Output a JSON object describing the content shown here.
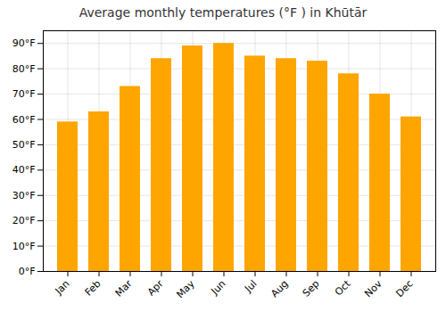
{
  "chart_data": {
    "type": "bar",
    "title": "Average monthly temperatures (°F ) in Khūtār",
    "categories": [
      "Jan",
      "Feb",
      "Mar",
      "Apr",
      "May",
      "Jun",
      "Jul",
      "Aug",
      "Sep",
      "Oct",
      "Nov",
      "Dec"
    ],
    "values": [
      59,
      63,
      73,
      84,
      89,
      90,
      85,
      84,
      83,
      78,
      70,
      61
    ],
    "color": "#FFA500",
    "ylim": [
      0,
      95
    ],
    "yticks": [
      {
        "value": 0,
        "label": "0°F"
      },
      {
        "value": 10,
        "label": "10°F"
      },
      {
        "value": 20,
        "label": "20°F"
      },
      {
        "value": 30,
        "label": "30°F"
      },
      {
        "value": 40,
        "label": "40°F"
      },
      {
        "value": 50,
        "label": "50°F"
      },
      {
        "value": 60,
        "label": "60°F"
      },
      {
        "value": 70,
        "label": "70°F"
      },
      {
        "value": 80,
        "label": "80°F"
      },
      {
        "value": 90,
        "label": "90°F"
      }
    ],
    "grid": true
  }
}
